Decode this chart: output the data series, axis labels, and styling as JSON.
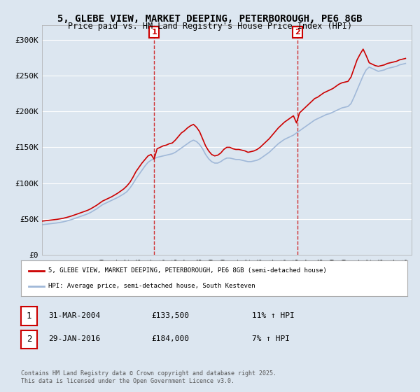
{
  "title_line1": "5, GLEBE VIEW, MARKET DEEPING, PETERBOROUGH, PE6 8GB",
  "title_line2": "Price paid vs. HM Land Registry's House Price Index (HPI)",
  "ylabel": "",
  "xlim_start": 1995.0,
  "xlim_end": 2025.5,
  "ylim_min": 0,
  "ylim_max": 320000,
  "yticks": [
    0,
    50000,
    100000,
    150000,
    200000,
    250000,
    300000
  ],
  "ytick_labels": [
    "£0",
    "£50K",
    "£100K",
    "£150K",
    "£200K",
    "£250K",
    "£300K"
  ],
  "xtick_years": [
    1995,
    1996,
    1997,
    1998,
    1999,
    2000,
    2001,
    2002,
    2003,
    2004,
    2005,
    2006,
    2007,
    2008,
    2009,
    2010,
    2011,
    2012,
    2013,
    2014,
    2015,
    2016,
    2017,
    2018,
    2019,
    2020,
    2021,
    2022,
    2023,
    2024,
    2025
  ],
  "background_color": "#dce6f0",
  "plot_bg_color": "#dce6f0",
  "grid_color": "#ffffff",
  "red_line_color": "#cc0000",
  "blue_line_color": "#a0b8d8",
  "marker1_x": 2004.25,
  "marker1_y": 133500,
  "marker1_label": "1",
  "marker2_x": 2016.08,
  "marker2_y": 184000,
  "marker2_label": "2",
  "legend_red_label": "5, GLEBE VIEW, MARKET DEEPING, PETERBOROUGH, PE6 8GB (semi-detached house)",
  "legend_blue_label": "HPI: Average price, semi-detached house, South Kesteven",
  "annotation1_date": "31-MAR-2004",
  "annotation1_price": "£133,500",
  "annotation1_hpi": "11% ↑ HPI",
  "annotation2_date": "29-JAN-2016",
  "annotation2_price": "£184,000",
  "annotation2_hpi": "7% ↑ HPI",
  "footer_text": "Contains HM Land Registry data © Crown copyright and database right 2025.\nThis data is licensed under the Open Government Licence v3.0.",
  "hpi_data_x": [
    1995.0,
    1995.25,
    1995.5,
    1995.75,
    1996.0,
    1996.25,
    1996.5,
    1996.75,
    1997.0,
    1997.25,
    1997.5,
    1997.75,
    1998.0,
    1998.25,
    1998.5,
    1998.75,
    1999.0,
    1999.25,
    1999.5,
    1999.75,
    2000.0,
    2000.25,
    2000.5,
    2000.75,
    2001.0,
    2001.25,
    2001.5,
    2001.75,
    2002.0,
    2002.25,
    2002.5,
    2002.75,
    2003.0,
    2003.25,
    2003.5,
    2003.75,
    2004.0,
    2004.25,
    2004.5,
    2004.75,
    2005.0,
    2005.25,
    2005.5,
    2005.75,
    2006.0,
    2006.25,
    2006.5,
    2006.75,
    2007.0,
    2007.25,
    2007.5,
    2007.75,
    2008.0,
    2008.25,
    2008.5,
    2008.75,
    2009.0,
    2009.25,
    2009.5,
    2009.75,
    2010.0,
    2010.25,
    2010.5,
    2010.75,
    2011.0,
    2011.25,
    2011.5,
    2011.75,
    2012.0,
    2012.25,
    2012.5,
    2012.75,
    2013.0,
    2013.25,
    2013.5,
    2013.75,
    2014.0,
    2014.25,
    2014.5,
    2014.75,
    2015.0,
    2015.25,
    2015.5,
    2015.75,
    2016.0,
    2016.25,
    2016.5,
    2016.75,
    2017.0,
    2017.25,
    2017.5,
    2017.75,
    2018.0,
    2018.25,
    2018.5,
    2018.75,
    2019.0,
    2019.25,
    2019.5,
    2019.75,
    2020.0,
    2020.25,
    2020.5,
    2020.75,
    2021.0,
    2021.25,
    2021.5,
    2021.75,
    2022.0,
    2022.25,
    2022.5,
    2022.75,
    2023.0,
    2023.25,
    2023.5,
    2023.75,
    2024.0,
    2024.25,
    2024.5,
    2024.75,
    2025.0
  ],
  "hpi_data_y": [
    42000,
    42500,
    43000,
    43500,
    44000,
    44500,
    45200,
    46000,
    47000,
    48200,
    49500,
    51000,
    52500,
    54000,
    55500,
    57000,
    59000,
    61500,
    64000,
    67000,
    70000,
    72000,
    74000,
    76000,
    78000,
    80000,
    82500,
    85000,
    88000,
    93000,
    99000,
    106000,
    112000,
    118000,
    124000,
    129000,
    132000,
    134000,
    136000,
    137000,
    138000,
    139000,
    140000,
    141000,
    143000,
    146000,
    149000,
    152000,
    155000,
    158000,
    160000,
    158000,
    154000,
    148000,
    140000,
    134000,
    130000,
    128000,
    128000,
    130000,
    133000,
    135000,
    135000,
    134000,
    133000,
    133000,
    132000,
    131000,
    130000,
    130000,
    131000,
    132000,
    134000,
    137000,
    140000,
    143000,
    147000,
    151000,
    155000,
    158000,
    161000,
    163000,
    165000,
    167000,
    170000,
    173000,
    176000,
    179000,
    182000,
    185000,
    188000,
    190000,
    192000,
    194000,
    196000,
    197000,
    199000,
    201000,
    203000,
    205000,
    206000,
    207000,
    211000,
    220000,
    230000,
    240000,
    250000,
    258000,
    262000,
    260000,
    258000,
    256000,
    257000,
    258000,
    260000,
    261000,
    262000,
    263000,
    265000,
    266000,
    267000
  ],
  "red_data_x": [
    1995.0,
    1995.25,
    1995.5,
    1995.75,
    1996.0,
    1996.25,
    1996.5,
    1996.75,
    1997.0,
    1997.25,
    1997.5,
    1997.75,
    1998.0,
    1998.25,
    1998.5,
    1998.75,
    1999.0,
    1999.25,
    1999.5,
    1999.75,
    2000.0,
    2000.25,
    2000.5,
    2000.75,
    2001.0,
    2001.25,
    2001.5,
    2001.75,
    2002.0,
    2002.25,
    2002.5,
    2002.75,
    2003.0,
    2003.25,
    2003.5,
    2003.75,
    2004.0,
    2004.25,
    2004.5,
    2004.75,
    2005.0,
    2005.25,
    2005.5,
    2005.75,
    2006.0,
    2006.25,
    2006.5,
    2006.75,
    2007.0,
    2007.25,
    2007.5,
    2007.75,
    2008.0,
    2008.25,
    2008.5,
    2008.75,
    2009.0,
    2009.25,
    2009.5,
    2009.75,
    2010.0,
    2010.25,
    2010.5,
    2010.75,
    2011.0,
    2011.25,
    2011.5,
    2011.75,
    2012.0,
    2012.25,
    2012.5,
    2012.75,
    2013.0,
    2013.25,
    2013.5,
    2013.75,
    2014.0,
    2014.25,
    2014.5,
    2014.75,
    2015.0,
    2015.25,
    2015.5,
    2015.75,
    2016.0,
    2016.25,
    2016.5,
    2016.75,
    2017.0,
    2017.25,
    2017.5,
    2017.75,
    2018.0,
    2018.25,
    2018.5,
    2018.75,
    2019.0,
    2019.25,
    2019.5,
    2019.75,
    2020.0,
    2020.25,
    2020.5,
    2020.75,
    2021.0,
    2021.25,
    2021.5,
    2021.75,
    2022.0,
    2022.25,
    2022.5,
    2022.75,
    2023.0,
    2023.25,
    2023.5,
    2023.75,
    2024.0,
    2024.25,
    2024.5,
    2024.75,
    2025.0
  ],
  "red_data_y": [
    47000,
    47500,
    48000,
    48500,
    49000,
    49500,
    50200,
    51000,
    52000,
    53200,
    54500,
    56000,
    57500,
    59000,
    60500,
    62000,
    64000,
    66500,
    69000,
    72000,
    75000,
    77000,
    79000,
    81000,
    83500,
    86000,
    89000,
    92000,
    96000,
    101000,
    108000,
    116000,
    122000,
    128000,
    133000,
    138000,
    140000,
    133500,
    148000,
    150000,
    152000,
    153000,
    155000,
    156000,
    160000,
    165000,
    170000,
    173000,
    177000,
    180000,
    182000,
    178000,
    172000,
    162000,
    152000,
    145000,
    140000,
    138000,
    139000,
    142000,
    147000,
    150000,
    150000,
    148000,
    147000,
    147000,
    146000,
    145000,
    143000,
    144000,
    145000,
    147000,
    150000,
    154000,
    158000,
    162000,
    167000,
    172000,
    177000,
    181000,
    185000,
    188000,
    191000,
    194000,
    184000,
    198000,
    202000,
    206000,
    210000,
    214000,
    218000,
    220000,
    223000,
    226000,
    228000,
    230000,
    232000,
    235000,
    238000,
    240000,
    241000,
    242000,
    248000,
    260000,
    272000,
    280000,
    287000,
    278000,
    268000,
    266000,
    264000,
    263000,
    264000,
    265000,
    267000,
    268000,
    269000,
    270000,
    272000,
    273000,
    274000
  ]
}
